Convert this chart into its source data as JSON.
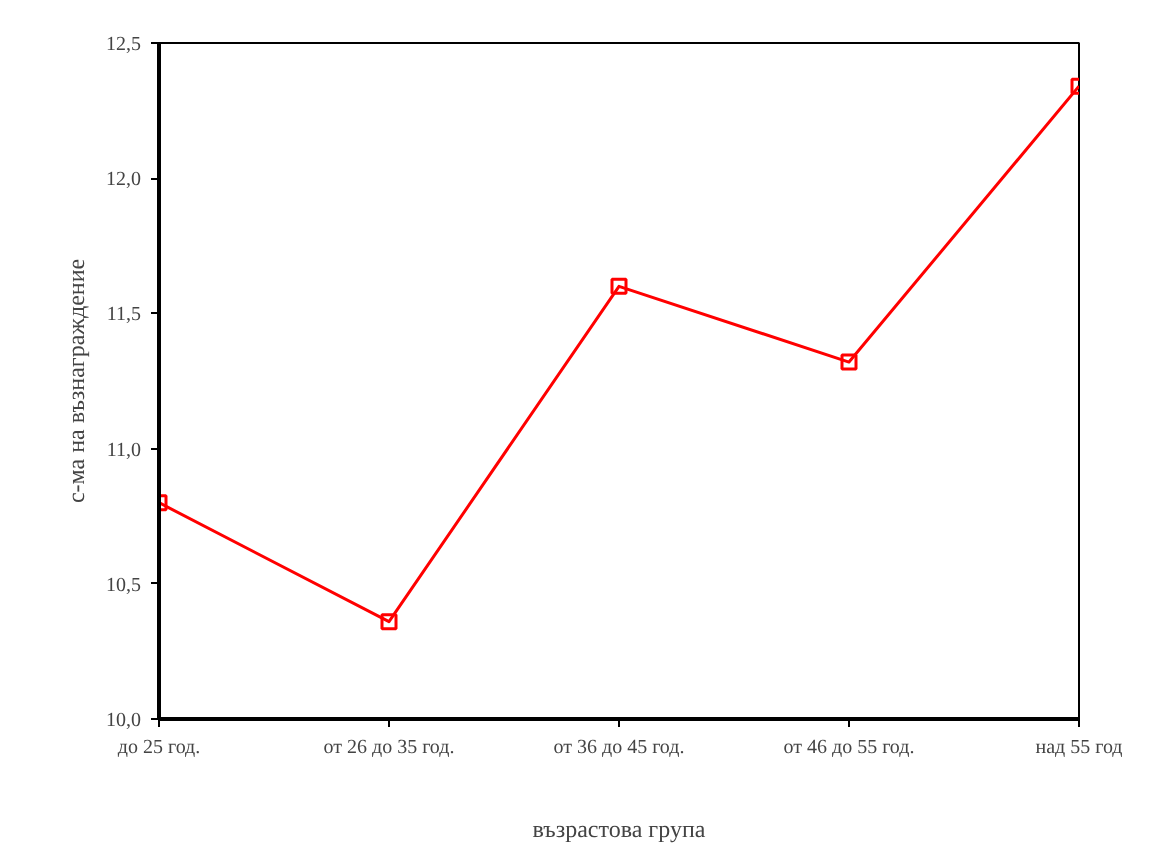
{
  "chart_data": {
    "type": "line",
    "xlabel": "възрастова група",
    "ylabel": "с-ма на възнаграждение",
    "categories": [
      "до 25 год.",
      "от 26 до 35 год.",
      "от 36 до 45 год.",
      "от 46 до 55 год.",
      "над 55 год"
    ],
    "series": [
      {
        "color": "#ff0000",
        "values": [
          10.8,
          10.36,
          11.6,
          11.32,
          12.34
        ]
      }
    ],
    "ylim": [
      10.0,
      12.5
    ],
    "yticks": [
      {
        "value": 10.0,
        "label": "10,0"
      },
      {
        "value": 10.5,
        "label": "10,5"
      },
      {
        "value": 11.0,
        "label": "11,0"
      },
      {
        "value": 11.5,
        "label": "11,5"
      },
      {
        "value": 12.0,
        "label": "12,0"
      },
      {
        "value": 12.5,
        "label": "12,5"
      }
    ],
    "grid": false,
    "marker": "square",
    "line_style": "solid"
  }
}
